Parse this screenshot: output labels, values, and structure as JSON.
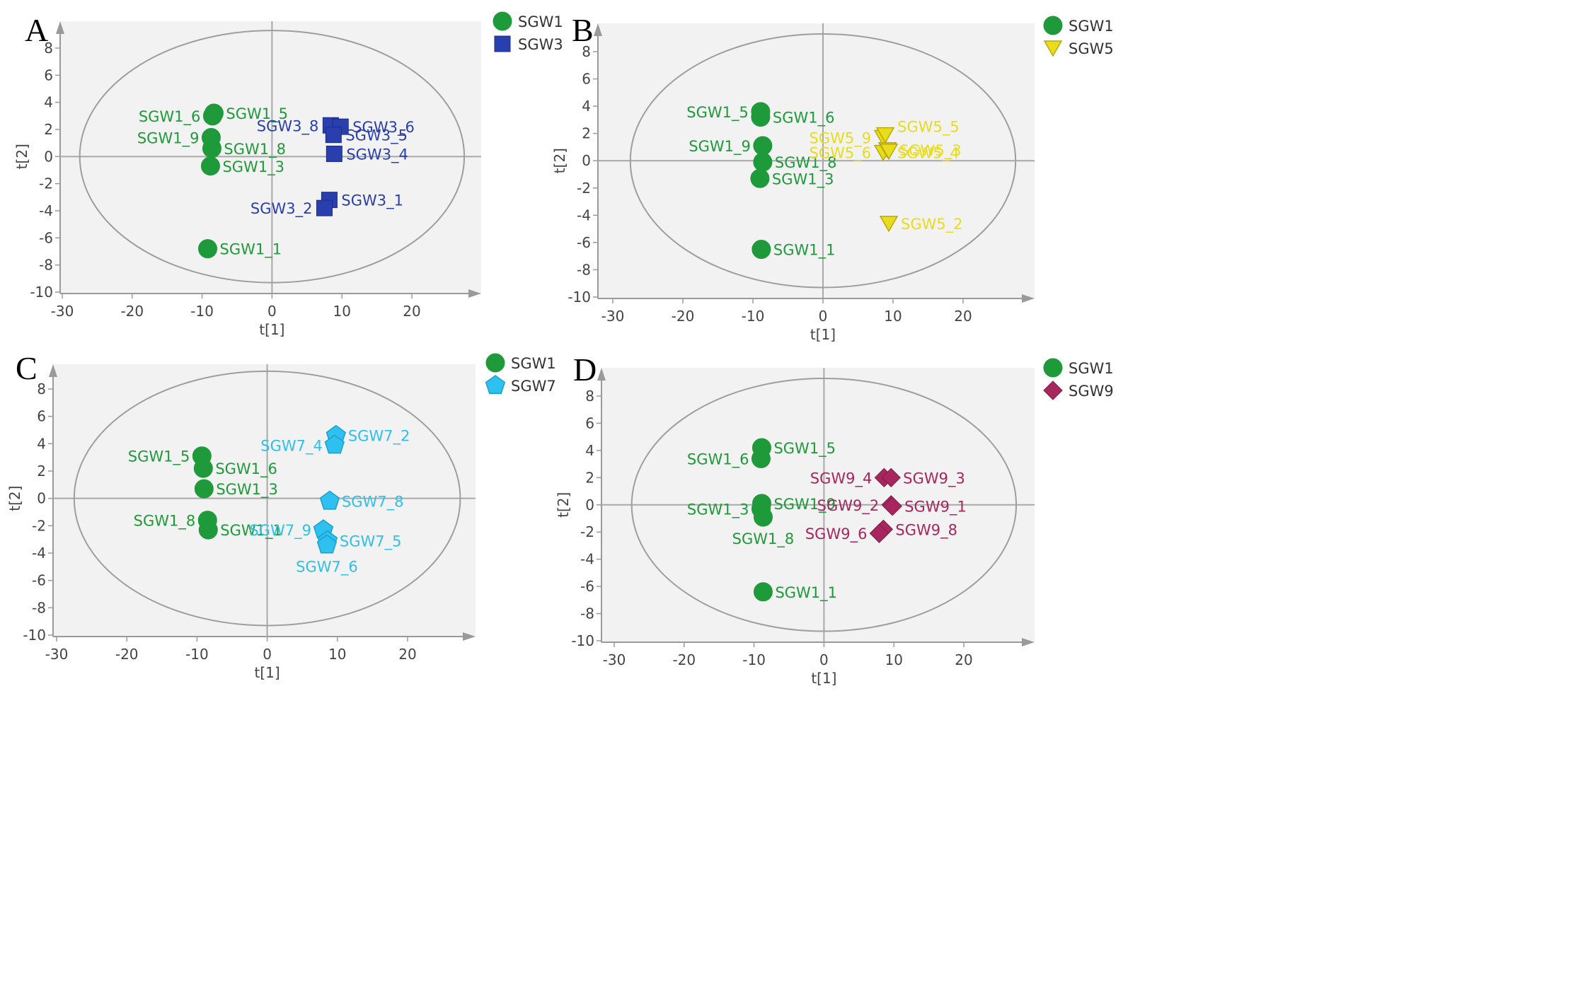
{
  "chart_data": [
    {
      "type": "scatter",
      "panel": "A",
      "xlabel": "t[1]",
      "ylabel": "t[2]",
      "xlim": [
        -30,
        30
      ],
      "ylim": [
        -10,
        9
      ],
      "xticks": [
        -30,
        -20,
        -10,
        0,
        10,
        20
      ],
      "yticks": [
        -10,
        -8,
        -6,
        -4,
        -2,
        0,
        2,
        4,
        6,
        8
      ],
      "ellipse": {
        "rx": 27.5,
        "ry": 9.3
      },
      "series": [
        {
          "name": "SGW1",
          "color": "#1e9a3a",
          "marker": "circle",
          "points": [
            {
              "label": "SGW1_5",
              "x": -8.3,
              "y": 3.2
            },
            {
              "label": "SGW1_6",
              "x": -8.5,
              "y": 3.0
            },
            {
              "label": "SGW1_9",
              "x": -8.7,
              "y": 1.4
            },
            {
              "label": "SGW1_8",
              "x": -8.6,
              "y": 0.6
            },
            {
              "label": "SGW1_3",
              "x": -8.8,
              "y": -0.7
            },
            {
              "label": "SGW1_1",
              "x": -9.2,
              "y": -6.8
            }
          ]
        },
        {
          "name": "SGW3",
          "color": "#2a3fae",
          "marker": "square",
          "points": [
            {
              "label": "SGW3_8",
              "x": 8.4,
              "y": 2.3
            },
            {
              "label": "SGW3_6",
              "x": 9.8,
              "y": 2.2
            },
            {
              "label": "SGW3_5",
              "x": 8.8,
              "y": 1.6
            },
            {
              "label": "SGW3_4",
              "x": 8.9,
              "y": 0.2
            },
            {
              "label": "SGW3_1",
              "x": 8.2,
              "y": -3.2
            },
            {
              "label": "SGW3_2",
              "x": 7.5,
              "y": -3.8
            }
          ]
        }
      ]
    },
    {
      "type": "scatter",
      "panel": "B",
      "xlabel": "t[1]",
      "ylabel": "t[2]",
      "xlim": [
        -30,
        30
      ],
      "ylim": [
        -10,
        9
      ],
      "xticks": [
        -30,
        -20,
        -10,
        0,
        10,
        20
      ],
      "yticks": [
        -10,
        -8,
        -6,
        -4,
        -2,
        0,
        2,
        4,
        6,
        8
      ],
      "ellipse": {
        "rx": 27.5,
        "ry": 9.3
      },
      "series": [
        {
          "name": "SGW1",
          "color": "#1e9a3a",
          "marker": "circle",
          "points": [
            {
              "label": "SGW1_5",
              "x": -8.9,
              "y": 3.6
            },
            {
              "label": "SGW1_6",
              "x": -8.9,
              "y": 3.2
            },
            {
              "label": "SGW1_9",
              "x": -8.6,
              "y": 1.1
            },
            {
              "label": "SGW1_8",
              "x": -8.6,
              "y": -0.1
            },
            {
              "label": "SGW1_3",
              "x": -9.0,
              "y": -1.3
            },
            {
              "label": "SGW1_1",
              "x": -8.8,
              "y": -6.5
            }
          ]
        },
        {
          "name": "SGW5",
          "color": "#e8dc1c",
          "marker": "triangle-down",
          "points": [
            {
              "label": "SGW5_9",
              "x": 8.6,
              "y": 1.7
            },
            {
              "label": "SGW5_5",
              "x": 8.9,
              "y": 1.9
            },
            {
              "label": "SGW5_6",
              "x": 8.6,
              "y": 0.6
            },
            {
              "label": "SGW5_3",
              "x": 9.2,
              "y": 0.8
            },
            {
              "label": "SGW5_4",
              "x": 9.4,
              "y": 0.7
            },
            {
              "label": "SGW5_2",
              "x": 9.4,
              "y": -4.6
            }
          ]
        }
      ]
    },
    {
      "type": "scatter",
      "panel": "C",
      "xlabel": "t[1]",
      "ylabel": "t[2]",
      "xlim": [
        -30,
        30
      ],
      "ylim": [
        -10,
        9
      ],
      "xticks": [
        -30,
        -20,
        -10,
        0,
        10,
        20
      ],
      "yticks": [
        -10,
        -8,
        -6,
        -4,
        -2,
        0,
        2,
        4,
        6,
        8
      ],
      "ellipse": {
        "rx": 27.5,
        "ry": 9.3
      },
      "series": [
        {
          "name": "SGW1",
          "color": "#1e9a3a",
          "marker": "circle",
          "points": [
            {
              "label": "SGW1_5",
              "x": -9.3,
              "y": 3.1
            },
            {
              "label": "SGW1_6",
              "x": -9.1,
              "y": 2.2
            },
            {
              "label": "SGW1_3",
              "x": -9.0,
              "y": 0.7
            },
            {
              "label": "SGW1_8",
              "x": -8.5,
              "y": -1.6
            },
            {
              "label": "SGW1_1",
              "x": -8.4,
              "y": -2.3
            }
          ]
        },
        {
          "name": "SGW7",
          "color": "#2ec0ee",
          "marker": "pentagon",
          "points": [
            {
              "label": "SGW7_2",
              "x": 9.8,
              "y": 4.6
            },
            {
              "label": "SGW7_4",
              "x": 9.6,
              "y": 3.9
            },
            {
              "label": "SGW7_8",
              "x": 8.9,
              "y": -0.2
            },
            {
              "label": "SGW7_9",
              "x": 8.0,
              "y": -2.3
            },
            {
              "label": "SGW7_5",
              "x": 8.6,
              "y": -3.1
            },
            {
              "label": "SGW7_6",
              "x": 8.5,
              "y": -3.4
            }
          ]
        }
      ]
    },
    {
      "type": "scatter",
      "panel": "D",
      "xlabel": "t[1]",
      "ylabel": "t[2]",
      "xlim": [
        -30,
        30
      ],
      "ylim": [
        -10,
        9
      ],
      "xticks": [
        -30,
        -20,
        -10,
        0,
        10,
        20
      ],
      "yticks": [
        -10,
        -8,
        -6,
        -4,
        -2,
        0,
        2,
        4,
        6,
        8
      ],
      "ellipse": {
        "rx": 27.5,
        "ry": 9.3
      },
      "series": [
        {
          "name": "SGW1",
          "color": "#1e9a3a",
          "marker": "circle",
          "points": [
            {
              "label": "SGW1_5",
              "x": -8.9,
              "y": 4.2
            },
            {
              "label": "SGW1_6",
              "x": -9.0,
              "y": 3.4
            },
            {
              "label": "SGW1_9",
              "x": -8.9,
              "y": 0.1
            },
            {
              "label": "SGW1_3",
              "x": -9.0,
              "y": -0.3
            },
            {
              "label": "SGW1_8",
              "x": -8.7,
              "y": -0.9
            },
            {
              "label": "SGW1_1",
              "x": -8.7,
              "y": -6.4
            }
          ]
        },
        {
          "name": "SGW9",
          "color": "#a8265e",
          "marker": "diamond",
          "points": [
            {
              "label": "SGW9_4",
              "x": 8.6,
              "y": 2.0
            },
            {
              "label": "SGW9_3",
              "x": 9.6,
              "y": 2.0
            },
            {
              "label": "SGW9_2",
              "x": 9.6,
              "y": 0.0
            },
            {
              "label": "SGW9_1",
              "x": 9.8,
              "y": -0.1
            },
            {
              "label": "SGW9_8",
              "x": 8.5,
              "y": -1.8
            },
            {
              "label": "SGW9_6",
              "x": 7.9,
              "y": -2.1
            }
          ]
        }
      ]
    }
  ]
}
